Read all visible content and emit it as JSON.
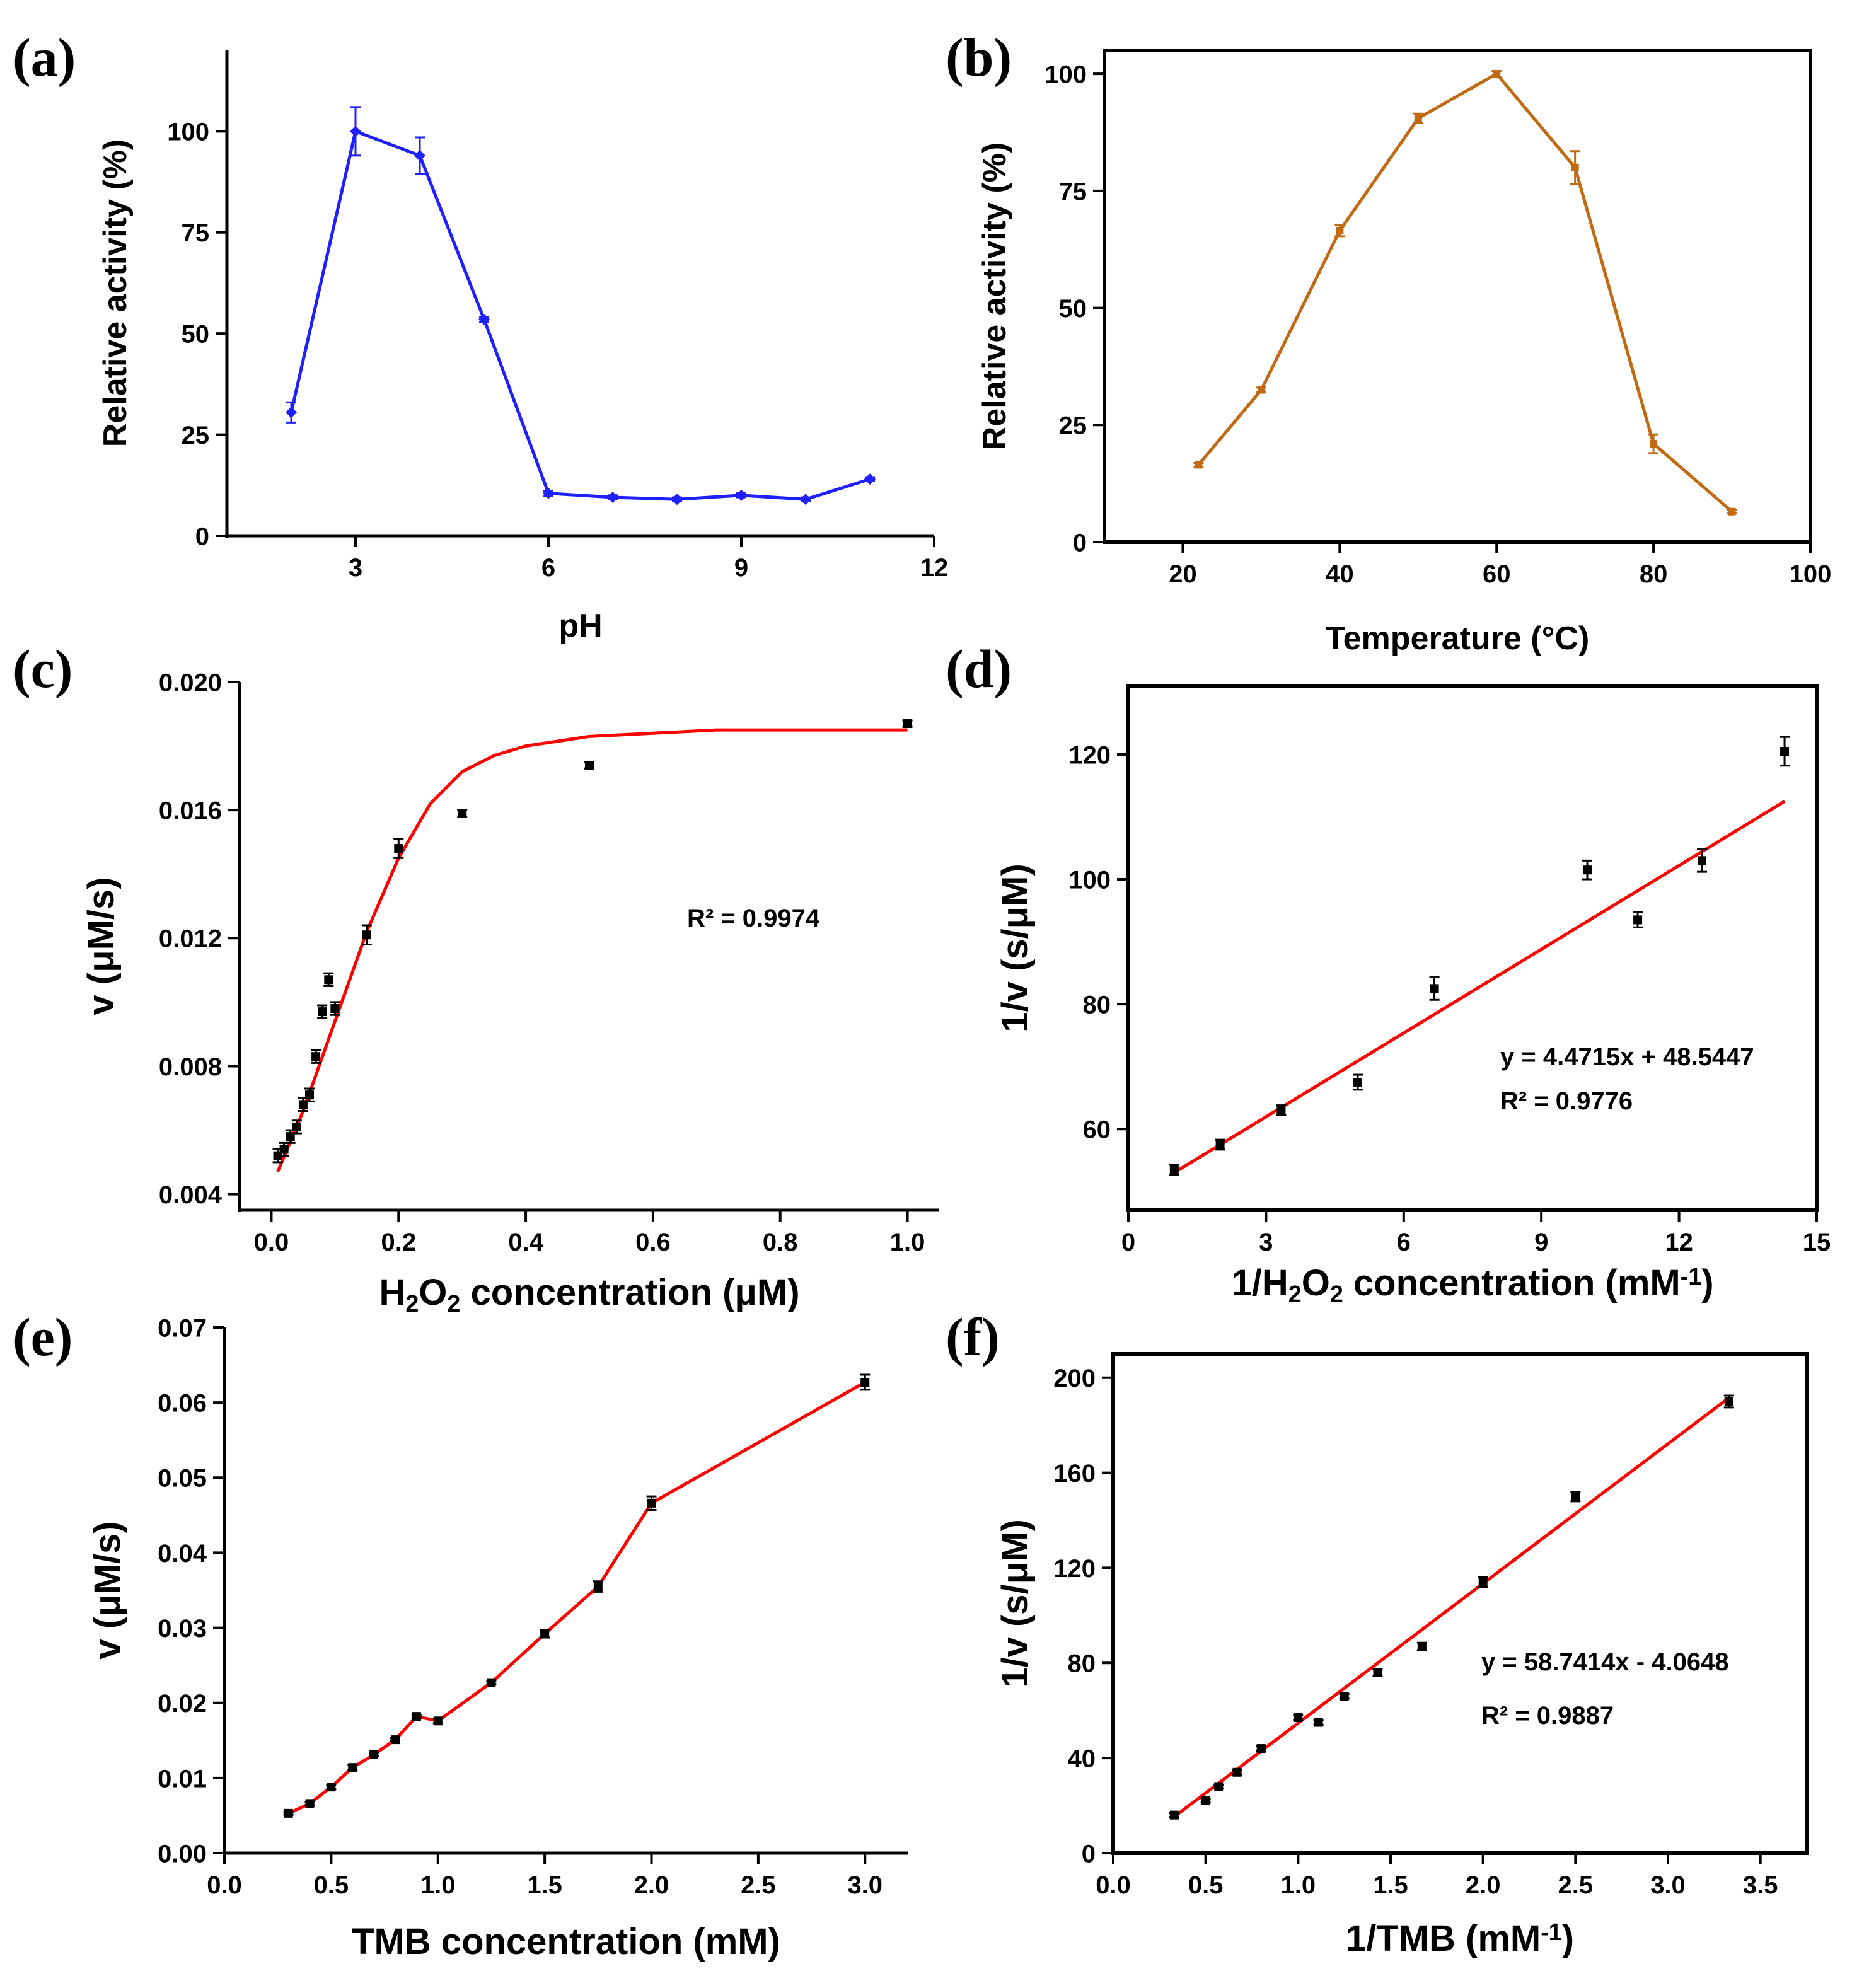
{
  "figure": {
    "title": ""
  },
  "chart_data": [
    {
      "id": "a",
      "panel_label": "(a)",
      "type": "line",
      "title": "",
      "xlabel": "pH",
      "ylabel": "Relative activity (%)",
      "xlim": [
        1,
        12
      ],
      "ylim": [
        0,
        120
      ],
      "xticks": [
        3,
        6,
        9,
        12
      ],
      "yticks": [
        0,
        25,
        50,
        75,
        100
      ],
      "xtick_labels": [
        "3",
        "6",
        "9",
        "12"
      ],
      "ytick_labels": [
        "0",
        "25",
        "50",
        "75",
        "100"
      ],
      "grid": false,
      "marker": "diamond",
      "color": "#1f1fff",
      "series": [
        {
          "name": "pH",
          "x": [
            2,
            3,
            4,
            5,
            6,
            7,
            8,
            9,
            10,
            11
          ],
          "y": [
            30.5,
            100,
            94,
            53.5,
            10.5,
            9.5,
            9,
            10,
            9,
            14
          ],
          "err": [
            2.5,
            6,
            4.5,
            0.6,
            0.6,
            0.5,
            0.5,
            0.5,
            0.5,
            0.5
          ]
        }
      ]
    },
    {
      "id": "b",
      "panel_label": "(b)",
      "type": "line",
      "title": "",
      "xlabel": "Temperature (°C)",
      "ylabel": "Relative activity (%)",
      "xlim": [
        10,
        100
      ],
      "ylim": [
        0,
        105
      ],
      "xticks": [
        20,
        40,
        60,
        80,
        100
      ],
      "yticks": [
        0,
        25,
        50,
        75,
        100
      ],
      "xtick_labels": [
        "20",
        "40",
        "60",
        "80",
        "100"
      ],
      "ytick_labels": [
        "0",
        "25",
        "50",
        "75",
        "100"
      ],
      "grid": false,
      "marker": "square",
      "color": "#c06a14",
      "series": [
        {
          "name": "Temperature",
          "x": [
            22,
            30,
            40,
            50,
            60,
            70,
            80,
            90
          ],
          "y": [
            16.5,
            32.5,
            66.5,
            90.5,
            100,
            80,
            21,
            6.5
          ],
          "err": [
            0.4,
            0.5,
            1.2,
            1,
            0.6,
            3.5,
            2,
            0.4
          ]
        }
      ]
    },
    {
      "id": "c",
      "panel_label": "(c)",
      "type": "scatter",
      "title": "",
      "xlabel": "H2O2 concentration (μM)",
      "ylabel": "v (μM/s)",
      "xlim": [
        -0.05,
        1.05
      ],
      "ylim": [
        0.0035,
        0.02
      ],
      "xticks": [
        0,
        0.2,
        0.4,
        0.6,
        0.8,
        1.0
      ],
      "yticks": [
        0.004,
        0.008,
        0.012,
        0.016,
        0.02
      ],
      "xtick_labels": [
        "0.0",
        "0.2",
        "0.4",
        "0.6",
        "0.8",
        "1.0"
      ],
      "ytick_labels": [
        "0.004",
        "0.008",
        "0.012",
        "0.016",
        "0.020"
      ],
      "grid": false,
      "marker": "square",
      "color": "#000000",
      "annotation": "R² = 0.9974",
      "series": [
        {
          "name": "data",
          "x": [
            0.01,
            0.02,
            0.03,
            0.04,
            0.05,
            0.06,
            0.07,
            0.08,
            0.09,
            0.1,
            0.15,
            0.2,
            0.3,
            0.5,
            1.0
          ],
          "y": [
            0.0052,
            0.0054,
            0.0058,
            0.0061,
            0.0068,
            0.0071,
            0.0083,
            0.0097,
            0.0107,
            0.0098,
            0.0121,
            0.0148,
            0.0159,
            0.0174,
            0.0187
          ],
          "err": [
            0.0002,
            0.0002,
            0.0002,
            0.0002,
            0.0002,
            0.0002,
            0.0002,
            0.0002,
            0.0002,
            0.0002,
            0.0003,
            0.0003,
            0.0001,
            0.0001,
            0.0001
          ]
        }
      ],
      "fit": {
        "name": "fit",
        "x": [
          0.01,
          0.05,
          0.1,
          0.15,
          0.2,
          0.25,
          0.3,
          0.35,
          0.4,
          0.5,
          0.6,
          0.7,
          0.8,
          0.9,
          1.0
        ],
        "y": [
          0.0047,
          0.0066,
          0.0094,
          0.0122,
          0.0145,
          0.0162,
          0.0172,
          0.0177,
          0.018,
          0.0183,
          0.0184,
          0.0185,
          0.0185,
          0.0185,
          0.0185
        ],
        "color": "#ff0000"
      }
    },
    {
      "id": "d",
      "panel_label": "(d)",
      "type": "scatter",
      "title": "",
      "xlabel": "1/H2O2 concentration (mM-1)",
      "ylabel": "1/v (s/μM)",
      "xlim": [
        0,
        15
      ],
      "ylim": [
        47,
        131
      ],
      "xticks": [
        0,
        3,
        6,
        9,
        12,
        15
      ],
      "yticks": [
        60,
        80,
        100,
        120
      ],
      "xtick_labels": [
        "0",
        "3",
        "6",
        "9",
        "12",
        "15"
      ],
      "ytick_labels": [
        "60",
        "80",
        "100",
        "120"
      ],
      "grid": false,
      "marker": "square",
      "color": "#000000",
      "annotation": [
        "y = 4.4715x + 48.5447",
        "R² = 0.9776"
      ],
      "series": [
        {
          "name": "data",
          "x": [
            1,
            2,
            3.33,
            5,
            6.67,
            10,
            11.1,
            12.5,
            14.3
          ],
          "y": [
            53.5,
            57.5,
            63,
            67.5,
            82.5,
            101.5,
            93.5,
            103,
            120.5
          ],
          "err": [
            0.8,
            0.8,
            0.8,
            1.2,
            1.8,
            1.5,
            1.2,
            1.8,
            2.3
          ]
        }
      ],
      "fit": {
        "name": "fit",
        "slope": 4.4715,
        "intercept": 48.5447,
        "x": [
          1,
          14.3
        ],
        "y": [
          53.02,
          112.49
        ],
        "color": "#ff0000"
      }
    },
    {
      "id": "e",
      "panel_label": "(e)",
      "type": "line",
      "title": "",
      "xlabel": "TMB concentration (mM)",
      "ylabel": "v (μM/s)",
      "xlim": [
        0,
        3.2
      ],
      "ylim": [
        0,
        0.07
      ],
      "xticks": [
        0,
        0.5,
        1.0,
        1.5,
        2.0,
        2.5,
        3.0
      ],
      "yticks": [
        0,
        0.01,
        0.02,
        0.03,
        0.04,
        0.05,
        0.06,
        0.07
      ],
      "xtick_labels": [
        "0.0",
        "0.5",
        "1.0",
        "1.5",
        "2.0",
        "2.5",
        "3.0"
      ],
      "ytick_labels": [
        "0.00",
        "0.01",
        "0.02",
        "0.03",
        "0.04",
        "0.05",
        "0.06",
        "0.07"
      ],
      "grid": false,
      "marker": "square",
      "color": "#000000",
      "line_color": "#ff0000",
      "series": [
        {
          "name": "TMB",
          "x": [
            0.3,
            0.4,
            0.5,
            0.6,
            0.7,
            0.8,
            0.9,
            1.0,
            1.25,
            1.5,
            1.75,
            2.0,
            3.0
          ],
          "y": [
            0.0053,
            0.0066,
            0.0088,
            0.0114,
            0.0131,
            0.0151,
            0.0182,
            0.0176,
            0.0227,
            0.0292,
            0.0355,
            0.0466,
            0.0627
          ],
          "err": [
            0.0002,
            0.0002,
            0.0003,
            0.0003,
            0.0002,
            0.0002,
            0.0002,
            0.0003,
            0.0002,
            0.0005,
            0.0007,
            0.0009,
            0.001
          ]
        }
      ]
    },
    {
      "id": "f",
      "panel_label": "(f)",
      "type": "scatter",
      "title": "",
      "xlabel": "1/TMB (mM-1)",
      "ylabel": "1/v (s/μM)",
      "xlim": [
        0,
        3.75
      ],
      "ylim": [
        0,
        210
      ],
      "xticks": [
        0,
        0.5,
        1.0,
        1.5,
        2.0,
        2.5,
        3.0,
        3.5
      ],
      "yticks": [
        0,
        40,
        80,
        120,
        160,
        200
      ],
      "xtick_labels": [
        "0.0",
        "0.5",
        "1.0",
        "1.5",
        "2.0",
        "2.5",
        "3.0",
        "3.5"
      ],
      "ytick_labels": [
        "0",
        "40",
        "80",
        "120",
        "160",
        "200"
      ],
      "grid": false,
      "marker": "square",
      "color": "#000000",
      "annotation": [
        "y = 58.7414x - 4.0648",
        "R² = 0.9887"
      ],
      "series": [
        {
          "name": "data",
          "x": [
            0.33,
            0.5,
            0.57,
            0.67,
            0.8,
            1.0,
            1.11,
            1.25,
            1.43,
            1.67,
            2.0,
            2.5,
            3.33
          ],
          "y": [
            16,
            22,
            28,
            34,
            44,
            57,
            55,
            66,
            76,
            87,
            114,
            150,
            190
          ],
          "err": [
            0.8,
            0.8,
            0.8,
            1,
            1,
            1,
            1,
            1,
            1.5,
            1.5,
            2,
            2,
            2.5
          ]
        }
      ],
      "fit": {
        "name": "fit",
        "slope": 58.7414,
        "intercept": -4.0648,
        "x": [
          0.33,
          3.33
        ],
        "y": [
          15.32,
          191.54
        ],
        "color": "#ff0000"
      }
    }
  ]
}
